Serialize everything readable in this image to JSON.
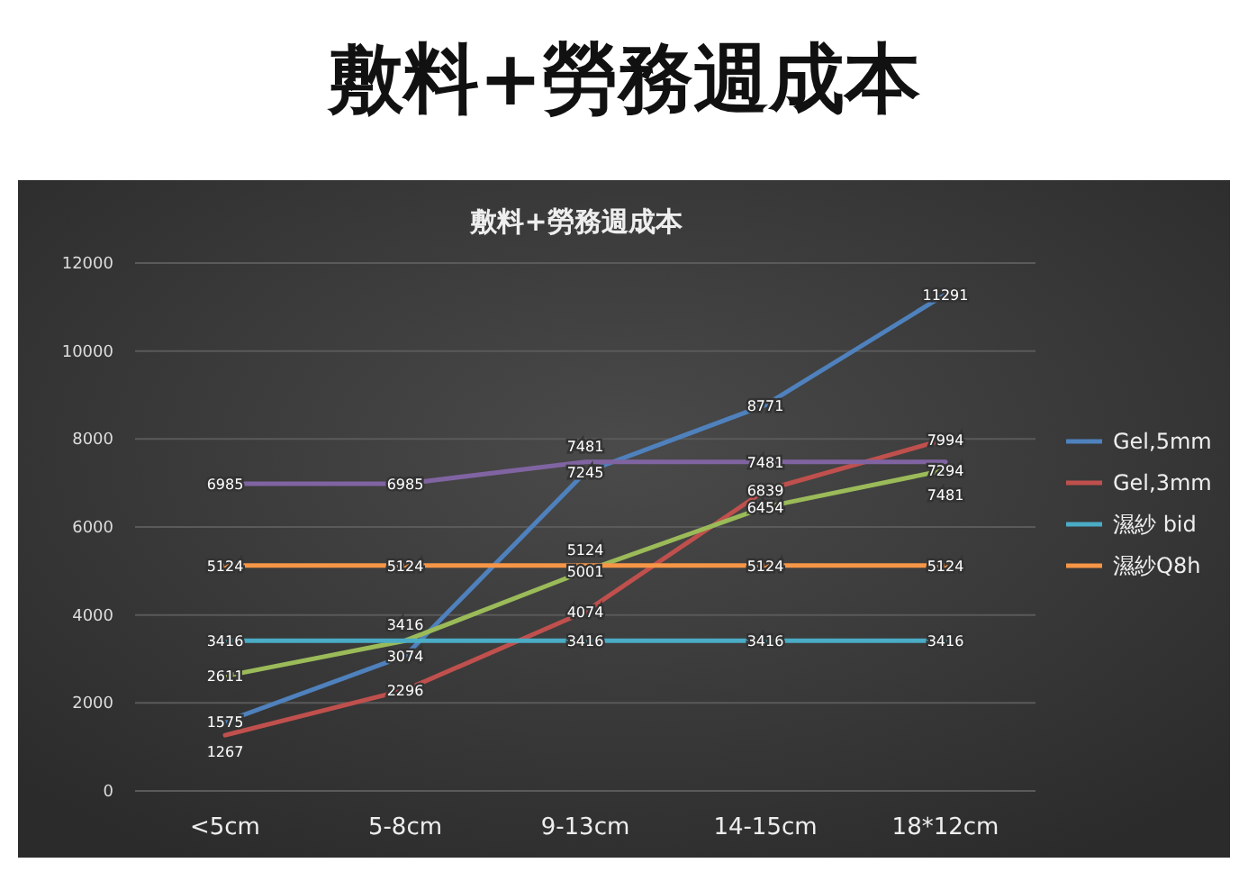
{
  "chart_data": {
    "type": "line",
    "title": "敷料+勞務週成本",
    "subtitle": "敷料+勞務週成本",
    "categories": [
      "<5cm",
      "5-8cm",
      "9-13cm",
      "14-15cm",
      "18*12cm"
    ],
    "series": [
      {
        "name": "Gel,5mm",
        "color": "#4f81bd",
        "values": [
          1575,
          3074,
          7245,
          8771,
          11291
        ]
      },
      {
        "name": "Gel,3mm",
        "color": "#c0504d",
        "values": [
          1267,
          2296,
          4074,
          6839,
          7994
        ]
      },
      {
        "color": "#9bbb59",
        "values": [
          2611,
          3416,
          5001,
          6454,
          7294
        ]
      },
      {
        "color": "#8064a2",
        "values": [
          6985,
          6985,
          7481,
          7481,
          7481
        ]
      },
      {
        "name": "濕紗 bid",
        "color": "#4bacc6",
        "values": [
          3416,
          3416,
          3416,
          3416,
          3416
        ],
        "value_labels": [
          "3416",
          null,
          "3416",
          "3416",
          "3416"
        ]
      },
      {
        "name": "濕紗Q8h",
        "color": "#f79646",
        "values": [
          5124,
          5124,
          5124,
          5124,
          5124
        ]
      }
    ],
    "ylim": [
      0,
      12000
    ],
    "yticks": [
      0,
      2000,
      4000,
      6000,
      8000,
      10000,
      12000
    ],
    "grid": "y",
    "legend": "right",
    "data_labels": true,
    "marker": "none",
    "line_style": "solid"
  }
}
